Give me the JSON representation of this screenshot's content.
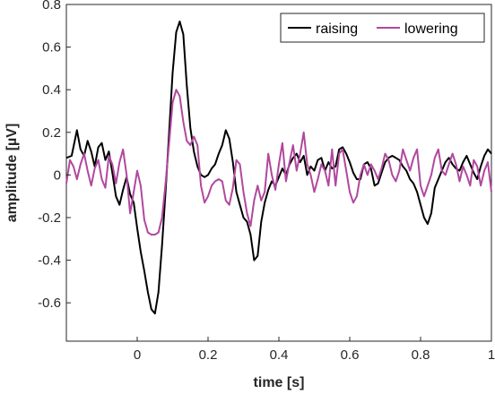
{
  "chart_data": {
    "type": "line",
    "xlabel": "time [s]",
    "ylabel": "amplitude [µV]",
    "xlim": [
      -0.2,
      1.0
    ],
    "ylim": [
      -0.78,
      0.8
    ],
    "xticks": [
      0,
      0.2,
      0.4,
      0.6,
      0.8,
      1
    ],
    "xtick_labels": [
      "0",
      "0.2",
      "0.4",
      "0.6",
      "0.8",
      "1"
    ],
    "yticks": [
      -0.6,
      -0.4,
      -0.2,
      0,
      0.2,
      0.4,
      0.6,
      0.8
    ],
    "ytick_labels": [
      "-0.6",
      "-0.4",
      "-0.2",
      "0",
      "0.2",
      "0.4",
      "0.6",
      "0.8"
    ],
    "grid": false,
    "legend_position": "top-right",
    "series": [
      {
        "name": "raising",
        "color": "#000000",
        "points": [
          [
            -0.2,
            0.08
          ],
          [
            -0.185,
            0.09
          ],
          [
            -0.17,
            0.21
          ],
          [
            -0.16,
            0.12
          ],
          [
            -0.15,
            0.09
          ],
          [
            -0.14,
            0.16
          ],
          [
            -0.13,
            0.11
          ],
          [
            -0.12,
            0.04
          ],
          [
            -0.11,
            0.13
          ],
          [
            -0.1,
            0.15
          ],
          [
            -0.09,
            0.07
          ],
          [
            -0.08,
            0.11
          ],
          [
            -0.07,
            0.01
          ],
          [
            -0.06,
            -0.1
          ],
          [
            -0.05,
            -0.14
          ],
          [
            -0.04,
            -0.07
          ],
          [
            -0.03,
            -0.01
          ],
          [
            -0.02,
            -0.09
          ],
          [
            -0.01,
            -0.13
          ],
          [
            0.0,
            -0.25
          ],
          [
            0.01,
            -0.36
          ],
          [
            0.02,
            -0.45
          ],
          [
            0.03,
            -0.55
          ],
          [
            0.04,
            -0.63
          ],
          [
            0.05,
            -0.65
          ],
          [
            0.06,
            -0.55
          ],
          [
            0.07,
            -0.33
          ],
          [
            0.08,
            -0.08
          ],
          [
            0.09,
            0.2
          ],
          [
            0.1,
            0.48
          ],
          [
            0.11,
            0.67
          ],
          [
            0.12,
            0.72
          ],
          [
            0.13,
            0.66
          ],
          [
            0.14,
            0.42
          ],
          [
            0.15,
            0.22
          ],
          [
            0.16,
            0.11
          ],
          [
            0.17,
            0.04
          ],
          [
            0.18,
            0.0
          ],
          [
            0.19,
            -0.01
          ],
          [
            0.2,
            0.0
          ],
          [
            0.21,
            0.03
          ],
          [
            0.22,
            0.05
          ],
          [
            0.23,
            0.1
          ],
          [
            0.24,
            0.14
          ],
          [
            0.25,
            0.21
          ],
          [
            0.26,
            0.17
          ],
          [
            0.27,
            0.06
          ],
          [
            0.28,
            -0.08
          ],
          [
            0.29,
            -0.14
          ],
          [
            0.3,
            -0.2
          ],
          [
            0.31,
            -0.22
          ],
          [
            0.32,
            -0.28
          ],
          [
            0.33,
            -0.4
          ],
          [
            0.34,
            -0.38
          ],
          [
            0.35,
            -0.22
          ],
          [
            0.36,
            -0.13
          ],
          [
            0.37,
            -0.07
          ],
          [
            0.38,
            -0.03
          ],
          [
            0.39,
            -0.05
          ],
          [
            0.4,
            -0.01
          ],
          [
            0.41,
            0.03
          ],
          [
            0.42,
            0.0
          ],
          [
            0.43,
            0.05
          ],
          [
            0.44,
            0.08
          ],
          [
            0.45,
            0.1
          ],
          [
            0.46,
            0.06
          ],
          [
            0.47,
            0.09
          ],
          [
            0.48,
            0.0
          ],
          [
            0.49,
            0.04
          ],
          [
            0.5,
            0.02
          ],
          [
            0.51,
            0.07
          ],
          [
            0.52,
            0.08
          ],
          [
            0.53,
            0.02
          ],
          [
            0.54,
            0.06
          ],
          [
            0.55,
            0.03
          ],
          [
            0.56,
            0.04
          ],
          [
            0.57,
            0.12
          ],
          [
            0.58,
            0.13
          ],
          [
            0.59,
            0.1
          ],
          [
            0.6,
            0.06
          ],
          [
            0.61,
            0.01
          ],
          [
            0.62,
            -0.02
          ],
          [
            0.63,
            -0.02
          ],
          [
            0.64,
            0.05
          ],
          [
            0.65,
            0.06
          ],
          [
            0.66,
            0.03
          ],
          [
            0.67,
            -0.05
          ],
          [
            0.68,
            -0.04
          ],
          [
            0.69,
            0.01
          ],
          [
            0.7,
            0.06
          ],
          [
            0.71,
            0.08
          ],
          [
            0.72,
            0.09
          ],
          [
            0.73,
            0.08
          ],
          [
            0.74,
            0.07
          ],
          [
            0.75,
            0.04
          ],
          [
            0.76,
            0.02
          ],
          [
            0.77,
            -0.02
          ],
          [
            0.78,
            -0.04
          ],
          [
            0.79,
            -0.08
          ],
          [
            0.8,
            -0.14
          ],
          [
            0.81,
            -0.2
          ],
          [
            0.82,
            -0.23
          ],
          [
            0.83,
            -0.18
          ],
          [
            0.84,
            -0.06
          ],
          [
            0.85,
            -0.02
          ],
          [
            0.86,
            0.02
          ],
          [
            0.87,
            0.06
          ],
          [
            0.88,
            0.08
          ],
          [
            0.89,
            0.05
          ],
          [
            0.9,
            0.03
          ],
          [
            0.91,
            0.02
          ],
          [
            0.92,
            0.06
          ],
          [
            0.93,
            0.09
          ],
          [
            0.94,
            0.05
          ],
          [
            0.95,
            0.01
          ],
          [
            0.96,
            -0.02
          ],
          [
            0.97,
            0.04
          ],
          [
            0.98,
            0.09
          ],
          [
            0.99,
            0.12
          ],
          [
            1.0,
            0.1
          ]
        ]
      },
      {
        "name": "lowering",
        "color": "#b0489e",
        "points": [
          [
            -0.2,
            -0.04
          ],
          [
            -0.19,
            0.07
          ],
          [
            -0.18,
            0.04
          ],
          [
            -0.17,
            -0.02
          ],
          [
            -0.16,
            0.05
          ],
          [
            -0.15,
            0.1
          ],
          [
            -0.14,
            0.02
          ],
          [
            -0.13,
            -0.05
          ],
          [
            -0.12,
            0.03
          ],
          [
            -0.11,
            0.07
          ],
          [
            -0.1,
            -0.02
          ],
          [
            -0.09,
            -0.06
          ],
          [
            -0.08,
            0.09
          ],
          [
            -0.07,
            0.05
          ],
          [
            -0.06,
            -0.04
          ],
          [
            -0.05,
            0.06
          ],
          [
            -0.04,
            0.12
          ],
          [
            -0.03,
            0.0
          ],
          [
            -0.02,
            -0.18
          ],
          [
            -0.01,
            -0.08
          ],
          [
            0.0,
            0.02
          ],
          [
            0.01,
            -0.05
          ],
          [
            0.02,
            -0.21
          ],
          [
            0.03,
            -0.27
          ],
          [
            0.04,
            -0.28
          ],
          [
            0.05,
            -0.28
          ],
          [
            0.06,
            -0.27
          ],
          [
            0.07,
            -0.2
          ],
          [
            0.08,
            -0.04
          ],
          [
            0.09,
            0.15
          ],
          [
            0.1,
            0.34
          ],
          [
            0.11,
            0.4
          ],
          [
            0.12,
            0.37
          ],
          [
            0.13,
            0.25
          ],
          [
            0.14,
            0.16
          ],
          [
            0.15,
            0.14
          ],
          [
            0.16,
            0.18
          ],
          [
            0.17,
            0.14
          ],
          [
            0.18,
            -0.05
          ],
          [
            0.19,
            -0.13
          ],
          [
            0.2,
            -0.1
          ],
          [
            0.21,
            -0.05
          ],
          [
            0.22,
            -0.03
          ],
          [
            0.23,
            -0.02
          ],
          [
            0.24,
            -0.03
          ],
          [
            0.25,
            -0.12
          ],
          [
            0.26,
            -0.14
          ],
          [
            0.27,
            -0.06
          ],
          [
            0.28,
            0.07
          ],
          [
            0.29,
            0.05
          ],
          [
            0.3,
            -0.08
          ],
          [
            0.31,
            -0.18
          ],
          [
            0.32,
            -0.24
          ],
          [
            0.33,
            -0.12
          ],
          [
            0.34,
            -0.05
          ],
          [
            0.35,
            -0.12
          ],
          [
            0.36,
            -0.08
          ],
          [
            0.37,
            0.1
          ],
          [
            0.38,
            0.0
          ],
          [
            0.39,
            -0.07
          ],
          [
            0.4,
            0.05
          ],
          [
            0.41,
            0.15
          ],
          [
            0.42,
            -0.03
          ],
          [
            0.43,
            0.06
          ],
          [
            0.44,
            0.14
          ],
          [
            0.45,
            0.02
          ],
          [
            0.46,
            0.1
          ],
          [
            0.47,
            0.2
          ],
          [
            0.48,
            0.05
          ],
          [
            0.49,
            0.0
          ],
          [
            0.5,
            -0.08
          ],
          [
            0.51,
            -0.02
          ],
          [
            0.52,
            0.05
          ],
          [
            0.53,
            0.02
          ],
          [
            0.54,
            -0.05
          ],
          [
            0.55,
            0.12
          ],
          [
            0.56,
            -0.05
          ],
          [
            0.57,
            0.1
          ],
          [
            0.58,
            0.12
          ],
          [
            0.59,
            0.02
          ],
          [
            0.6,
            -0.08
          ],
          [
            0.61,
            -0.13
          ],
          [
            0.62,
            -0.1
          ],
          [
            0.63,
            0.0
          ],
          [
            0.64,
            0.05
          ],
          [
            0.65,
            0.0
          ],
          [
            0.66,
            0.05
          ],
          [
            0.67,
            0.02
          ],
          [
            0.68,
            -0.02
          ],
          [
            0.69,
            0.03
          ],
          [
            0.7,
            0.1
          ],
          [
            0.71,
            0.07
          ],
          [
            0.72,
            0.0
          ],
          [
            0.73,
            -0.03
          ],
          [
            0.74,
            0.02
          ],
          [
            0.75,
            0.12
          ],
          [
            0.76,
            0.07
          ],
          [
            0.77,
            0.02
          ],
          [
            0.78,
            0.08
          ],
          [
            0.79,
            0.12
          ],
          [
            0.8,
            -0.05
          ],
          [
            0.81,
            -0.1
          ],
          [
            0.82,
            -0.05
          ],
          [
            0.83,
            0.0
          ],
          [
            0.84,
            0.08
          ],
          [
            0.85,
            0.12
          ],
          [
            0.86,
            0.02
          ],
          [
            0.87,
            0.0
          ],
          [
            0.88,
            0.05
          ],
          [
            0.89,
            0.1
          ],
          [
            0.9,
            0.05
          ],
          [
            0.91,
            -0.03
          ],
          [
            0.92,
            0.04
          ],
          [
            0.93,
            0.0
          ],
          [
            0.94,
            -0.05
          ],
          [
            0.95,
            0.07
          ],
          [
            0.96,
            0.04
          ],
          [
            0.97,
            -0.05
          ],
          [
            0.98,
            0.02
          ],
          [
            0.99,
            0.06
          ],
          [
            1.0,
            -0.08
          ]
        ]
      }
    ]
  }
}
